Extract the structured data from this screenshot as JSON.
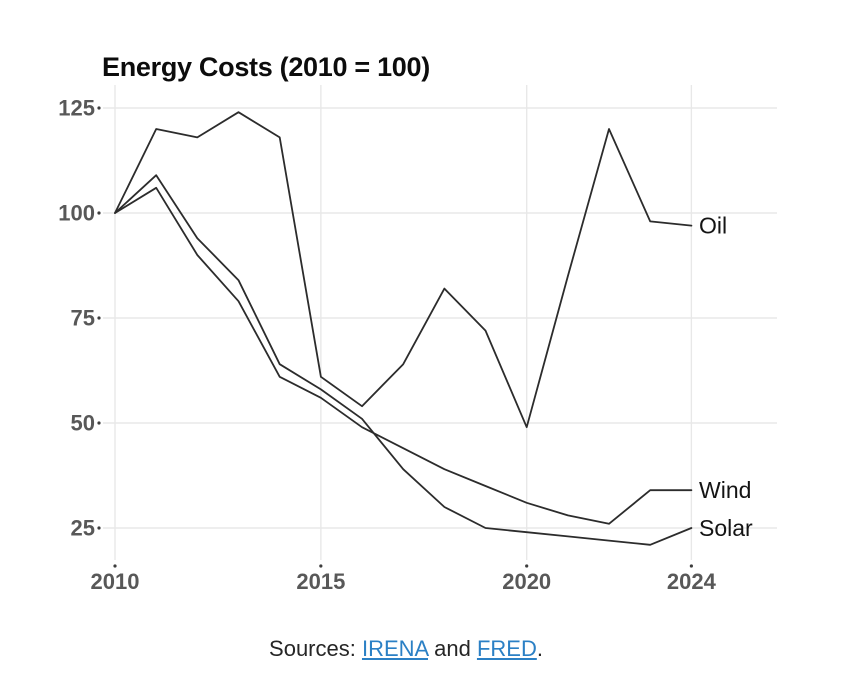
{
  "chart": {
    "line_color": "#2c2c2c",
    "grid_color": "#e8e8e8",
    "axis_label_color": "#585858",
    "title_color": "#0c0c0c"
  },
  "chart_data": {
    "type": "line",
    "title": "Energy Costs (2010 = 100)",
    "x": [
      2010,
      2011,
      2012,
      2013,
      2014,
      2015,
      2016,
      2017,
      2018,
      2019,
      2020,
      2021,
      2022,
      2023,
      2024
    ],
    "series": [
      {
        "name": "Oil",
        "values": [
          100,
          120,
          118,
          124,
          118,
          61,
          54,
          64,
          82,
          72,
          49,
          85,
          120,
          98,
          97
        ]
      },
      {
        "name": "Wind",
        "values": [
          100,
          106,
          90,
          79,
          61,
          56,
          49,
          44,
          39,
          35,
          31,
          28,
          26,
          34,
          34
        ]
      },
      {
        "name": "Solar",
        "values": [
          100,
          109,
          94,
          84,
          64,
          58,
          51,
          39,
          30,
          25,
          24,
          23,
          22,
          21,
          25
        ]
      }
    ],
    "x_ticks": [
      2010,
      2015,
      2020,
      2024
    ],
    "y_ticks": [
      25,
      50,
      75,
      100,
      125
    ],
    "ylim": [
      17,
      131
    ],
    "xlim": [
      2009.7,
      2026.3
    ],
    "grid": true,
    "legend": "direct-line-labels-right",
    "xlabel": "",
    "ylabel": ""
  },
  "caption": {
    "prefix": "Sources: ",
    "irena": "IRENA",
    "and": " and ",
    "fred": "FRED",
    "period": ".",
    "link_color": "#2b80c5"
  }
}
